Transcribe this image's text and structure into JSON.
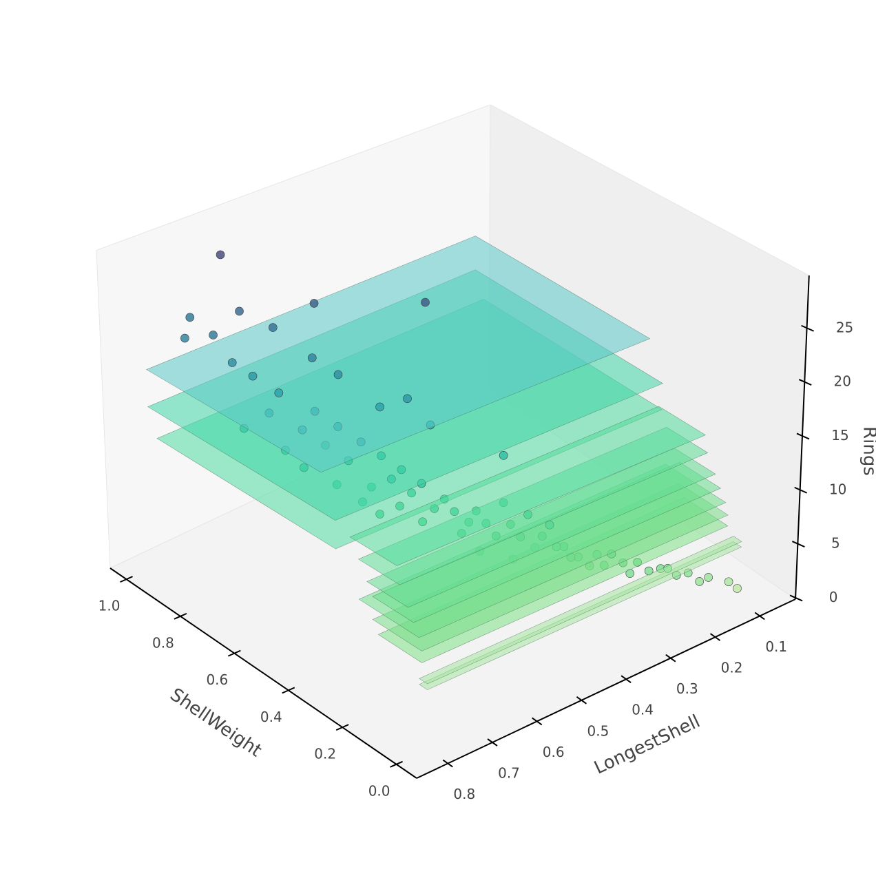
{
  "chart_data": {
    "type": "scatter3d",
    "x_label": "LongestShell",
    "y_label": "ShellWeight",
    "z_label": "Rings",
    "xlim": [
      0.02,
      0.87
    ],
    "ylim": [
      -0.075,
      1.06
    ],
    "zlim": [
      -0.1,
      29.9
    ],
    "xticks": [
      0.1,
      0.2,
      0.3,
      0.4,
      0.5,
      0.6,
      0.7,
      0.8
    ],
    "yticks": [
      {
        "value": 0,
        "label": "0.0"
      },
      0.2,
      0.4,
      0.6,
      0.8,
      {
        "value": 1,
        "label": "1.0"
      }
    ],
    "zticks": [
      0,
      5,
      10,
      15,
      20,
      25
    ],
    "colormap": [
      "#bfe9a8",
      "#66d98c",
      "#34cc9c",
      "#2bb0b0",
      "#38789a",
      "#4a4f80"
    ],
    "point_edge_color": "#3a3a3a",
    "plane_opacity": 0.55,
    "x": [
      0.16,
      0.2,
      0.22,
      0.25,
      0.27,
      0.29,
      0.31,
      0.33,
      0.35,
      0.36,
      0.38,
      0.4,
      0.41,
      0.43,
      0.44,
      0.46,
      0.47,
      0.49,
      0.5,
      0.51,
      0.52,
      0.54,
      0.55,
      0.56,
      0.57,
      0.58,
      0.59,
      0.6,
      0.61,
      0.62,
      0.63,
      0.64,
      0.65,
      0.66,
      0.67,
      0.68,
      0.7,
      0.71,
      0.72,
      0.74,
      0.75,
      0.77,
      0.12,
      0.18,
      0.24,
      0.3,
      0.34,
      0.39,
      0.42,
      0.45,
      0.48,
      0.53,
      0.58,
      0.6,
      0.62,
      0.64,
      0.66,
      0.69,
      0.7,
      0.73,
      0.55,
      0.57,
      0.6,
      0.63,
      0.65,
      0.68,
      0.71,
      0.74,
      0.5,
      0.7,
      0.45,
      0.62,
      0.1,
      0.52,
      0.47
    ],
    "y": [
      0.02,
      0.03,
      0.04,
      0.05,
      0.06,
      0.07,
      0.09,
      0.1,
      0.12,
      0.13,
      0.14,
      0.16,
      0.17,
      0.19,
      0.2,
      0.22,
      0.24,
      0.26,
      0.28,
      0.3,
      0.31,
      0.33,
      0.35,
      0.37,
      0.4,
      0.42,
      0.44,
      0.46,
      0.48,
      0.5,
      0.52,
      0.55,
      0.57,
      0.6,
      0.62,
      0.65,
      0.7,
      0.72,
      0.76,
      0.8,
      0.85,
      0.92,
      0.01,
      0.02,
      0.04,
      0.08,
      0.11,
      0.15,
      0.18,
      0.21,
      0.25,
      0.32,
      0.38,
      0.43,
      0.47,
      0.5,
      0.56,
      0.63,
      0.68,
      0.78,
      0.4,
      0.45,
      0.5,
      0.6,
      0.66,
      0.75,
      0.82,
      0.95,
      0.5,
      0.9,
      0.3,
      0.7,
      0.01,
      0.27,
      0.23
    ],
    "z": [
      3,
      4,
      4,
      5,
      5,
      6,
      6,
      7,
      7,
      6,
      7,
      8,
      8,
      9,
      8,
      9,
      10,
      9,
      10,
      11,
      10,
      11,
      12,
      11,
      13,
      12,
      14,
      13,
      15,
      12,
      16,
      14,
      17,
      15,
      18,
      16,
      19,
      17,
      20,
      21,
      23,
      22,
      2,
      3,
      5,
      5,
      6,
      7,
      10,
      11,
      12,
      9,
      10,
      11,
      10,
      11,
      12,
      13,
      14,
      15,
      18,
      20,
      19,
      21,
      22,
      24,
      25,
      23,
      27,
      29,
      15,
      26,
      1,
      8,
      7
    ],
    "planes": [
      {
        "z": 19,
        "x": [
          0.1,
          0.82
        ],
        "y": [
          0.35,
          0.98
        ],
        "color": "#5cc9c9"
      },
      {
        "z": 15.5,
        "x": [
          0.1,
          0.82
        ],
        "y": [
          0.3,
          0.98
        ],
        "color": "#3fd6a8"
      },
      {
        "z": 13,
        "x": [
          0.1,
          0.82
        ],
        "y": [
          0.3,
          0.95
        ],
        "color": "#4fdca0"
      },
      {
        "z": 14,
        "x": [
          0.12,
          0.8
        ],
        "y": [
          0.11,
          0.28
        ],
        "color": "#52dc9a"
      },
      {
        "z": 12.5,
        "x": [
          0.12,
          0.8
        ],
        "y": [
          0.1,
          0.25
        ],
        "color": "#5cdc96"
      },
      {
        "z": 11,
        "x": [
          0.12,
          0.8
        ],
        "y": [
          0.07,
          0.22
        ],
        "color": "#62dc92"
      },
      {
        "z": 10,
        "x": [
          0.12,
          0.8
        ],
        "y": [
          0.05,
          0.2
        ],
        "color": "#6ade8e"
      },
      {
        "z": 9,
        "x": [
          0.12,
          0.8
        ],
        "y": [
          0.03,
          0.25
        ],
        "color": "#70de8a"
      },
      {
        "z": 8,
        "x": [
          0.12,
          0.8
        ],
        "y": [
          0.02,
          0.2
        ],
        "color": "#78df88"
      },
      {
        "z": 7,
        "x": [
          0.12,
          0.8
        ],
        "y": [
          0.02,
          0.18
        ],
        "color": "#80e086"
      },
      {
        "z": 5.5,
        "x": [
          0.1,
          0.8
        ],
        "y": [
          0.0,
          0.03
        ],
        "color": "#a6e6a0"
      },
      {
        "z": 5,
        "x": [
          0.1,
          0.8
        ],
        "y": [
          0.0,
          0.03
        ],
        "color": "#a6e6a0"
      }
    ]
  }
}
